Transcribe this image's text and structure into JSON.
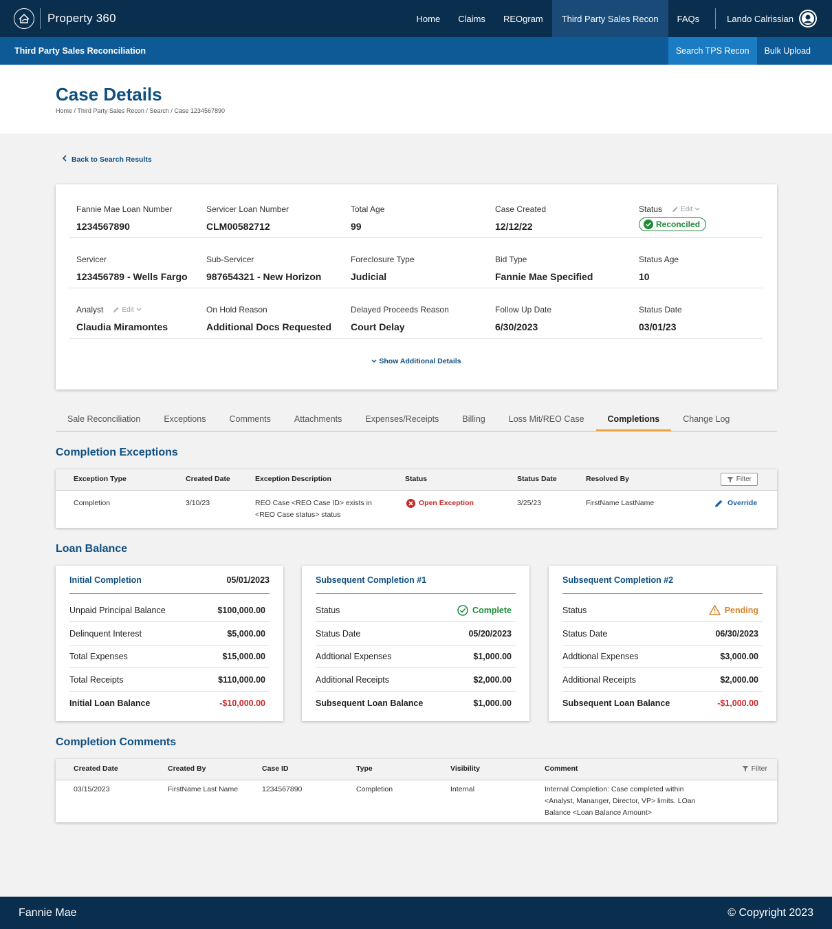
{
  "app": {
    "title": "Property 360",
    "logo_icon": "fannie-mae-house-icon"
  },
  "topnav": {
    "items": [
      "Home",
      "Claims",
      "REOgram",
      "Third Party Sales Recon",
      "FAQs"
    ],
    "active": "Third Party Sales Recon",
    "user_name": "Lando Calrissian"
  },
  "subnav": {
    "title": "Third Party Sales Reconciliation",
    "tabs": [
      "Search TPS Recon",
      "Bulk Upload"
    ],
    "active": "Search TPS Recon"
  },
  "header": {
    "title": "Case Details",
    "breadcrumb": "Home / Third Party Sales Recon / Search / Case 1234567890"
  },
  "back_link": "Back to Search Results",
  "details": {
    "rows": [
      [
        {
          "label": "Fannie Mae Loan Number",
          "value": "1234567890"
        },
        {
          "label": "Servicer Loan Number",
          "value": "CLM00582712"
        },
        {
          "label": "Total Age",
          "value": "99"
        },
        {
          "label": "Case Created",
          "value": "12/12/22"
        },
        {
          "label": "Status",
          "value": "Reconciled"
        }
      ],
      [
        {
          "label": "Servicer",
          "value": "123456789 - Wells Fargo"
        },
        {
          "label": "Sub-Servicer",
          "value": "987654321 - New Horizon"
        },
        {
          "label": "Foreclosure Type",
          "value": "Judicial"
        },
        {
          "label": "Bid Type",
          "value": "Fannie Mae Specified"
        },
        {
          "label": "Status Age",
          "value": "10"
        }
      ],
      [
        {
          "label": "Analyst",
          "value": "Claudia Miramontes"
        },
        {
          "label": "On Hold Reason",
          "value": "Additional Docs Requested"
        },
        {
          "label": "Delayed Proceeds Reason",
          "value": "Court Delay"
        },
        {
          "label": "Follow Up Date",
          "value": "6/30/2023"
        },
        {
          "label": "Status Date",
          "value": "03/01/23"
        }
      ]
    ],
    "edit_label": "Edit",
    "show_more": "Show Additional Details",
    "status_color": "#1f8a3a"
  },
  "tabs": [
    "Sale Reconciliation",
    "Exceptions",
    "Comments",
    "Attachments",
    "Expenses/Receipts",
    "Billing",
    "Loss Mit/REO Case",
    "Completions",
    "Change Log"
  ],
  "active_tab": "Completions",
  "completion_exceptions": {
    "title": "Completion Exceptions",
    "filter_label": "Filter",
    "columns": [
      "Exception Type",
      "Created Date",
      "Exception Description",
      "Status",
      "Status Date",
      "Resolved By"
    ],
    "rows": [
      {
        "type": "Completion",
        "created": "3/10/23",
        "desc_line1": "REO Case <REO Case ID> exists in",
        "desc_line2": "<REO Case status> status",
        "status": "Open Exception",
        "status_date": "3/25/23",
        "resolved_by": "FirstName LastName",
        "action": "Override"
      }
    ]
  },
  "loan_balance": {
    "title": "Loan Balance",
    "cards": [
      {
        "title": "Initial Completion",
        "date": "05/01/2023",
        "rows": [
          {
            "label": "Unpaid Principal Balance",
            "value": "$100,000.00"
          },
          {
            "label": "Delinquent Interest",
            "value": "$5,000.00"
          },
          {
            "label": "Total Expenses",
            "value": "$15,000.00"
          },
          {
            "label": "Total Receipts",
            "value": "$110,000.00"
          },
          {
            "label": "Initial Loan Balance",
            "value": "-$10,000.00"
          }
        ]
      },
      {
        "title": "Subsequent Completion #1",
        "date": "",
        "rows": [
          {
            "label": "Status",
            "value": "Complete"
          },
          {
            "label": "Status Date",
            "value": "05/20/2023"
          },
          {
            "label": "Addtional Expenses",
            "value": "$1,000.00"
          },
          {
            "label": "Additional Receipts",
            "value": "$2,000.00"
          },
          {
            "label": "Subsequent Loan Balance",
            "value": "$1,000.00"
          }
        ]
      },
      {
        "title": "Subsequent Completion #2",
        "date": "",
        "rows": [
          {
            "label": "Status",
            "value": "Pending"
          },
          {
            "label": "Status Date",
            "value": "06/30/2023"
          },
          {
            "label": "Addtional Expenses",
            "value": "$3,000.00"
          },
          {
            "label": "Additional Receipts",
            "value": "$2,000.00"
          },
          {
            "label": "Subsequent Loan Balance",
            "value": "-$1,000.00"
          }
        ]
      }
    ],
    "negative_color": "#c62828",
    "complete_color": "#1f8a3a",
    "pending_color": "#d9822b"
  },
  "completion_comments": {
    "title": "Completion Comments",
    "filter_label": "Filter",
    "columns": [
      "Created Date",
      "Created By",
      "Case ID",
      "Type",
      "Visibility",
      "Comment"
    ],
    "rows": [
      {
        "created": "03/15/2023",
        "by": "FirstName Last Name",
        "case_id": "1234567890",
        "type": "Completion",
        "visibility": "Internal",
        "comment_line1": "Internal Completion:  Case completed within",
        "comment_line2": "<Analyst, Mananger, Director, VP> limits.  LOan",
        "comment_line3": "Balance <Loan Balance Amount>"
      }
    ]
  },
  "footer": {
    "left": "Fannie Mae",
    "right": "© Copyright 2023"
  }
}
